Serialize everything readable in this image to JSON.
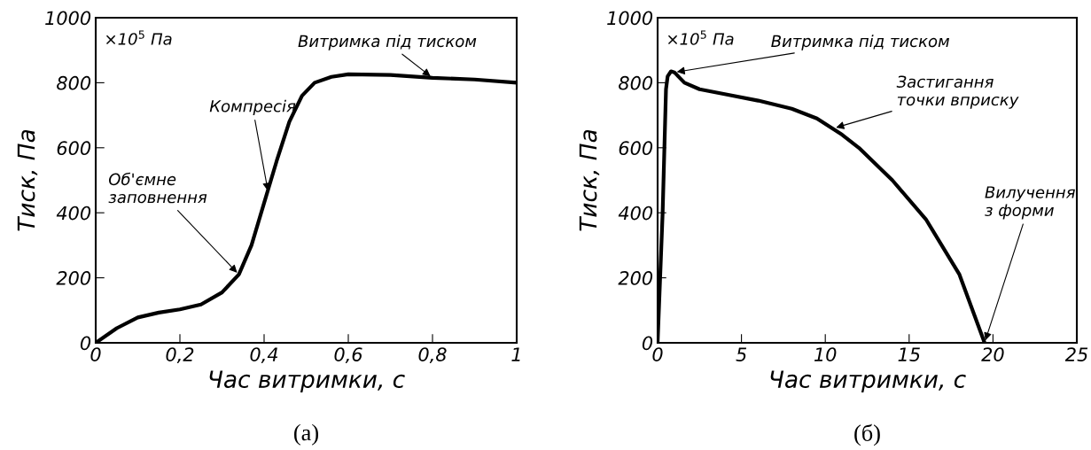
{
  "chart_data": [
    {
      "type": "line",
      "xlabel": "Час витримки, с",
      "ylabel": "Тиск, Па",
      "xlim": [
        0,
        1
      ],
      "ylim": [
        0,
        1000
      ],
      "xticks": [
        0,
        {
          "value": 0.2,
          "label": "0,2"
        },
        {
          "value": 0.4,
          "label": "0,4"
        },
        {
          "value": 0.6,
          "label": "0,6"
        },
        {
          "value": 0.8,
          "label": "0,8"
        },
        1
      ],
      "yticks": [
        0,
        200,
        400,
        600,
        800,
        1000
      ],
      "grid": false,
      "line_style": "solid",
      "x": [
        0,
        0.05,
        0.1,
        0.15,
        0.2,
        0.25,
        0.3,
        0.34,
        0.37,
        0.4,
        0.43,
        0.46,
        0.49,
        0.52,
        0.56,
        0.6,
        0.7,
        0.8,
        0.9,
        1
      ],
      "series": [
        {
          "color": "#000000",
          "values": [
            0,
            45,
            78,
            93,
            103,
            118,
            155,
            210,
            300,
            430,
            560,
            680,
            760,
            800,
            818,
            826,
            824,
            815,
            810,
            800
          ]
        }
      ],
      "annotations": [
        "×10$^{5}$ Па",
        {
          "text": "Об'ємне\nзаповнення",
          "x": 0.34,
          "y": 210
        },
        {
          "text": "Компресія",
          "x": 0.41,
          "y": 460
        },
        {
          "text": "Витримка під тиском",
          "x": 0.8,
          "y": 815
        },
        "(а)"
      ]
    },
    {
      "type": "line",
      "xlabel": "Час витримки, с",
      "ylabel": "Тиск, Па",
      "xlim": [
        0,
        25
      ],
      "ylim": [
        0,
        1000
      ],
      "xticks": [
        0,
        5,
        10,
        15,
        20,
        25
      ],
      "yticks": [
        0,
        200,
        400,
        600,
        800,
        1000
      ],
      "grid": false,
      "line_style": "solid",
      "x": [
        0,
        0.3,
        0.5,
        0.6,
        0.8,
        1.0,
        1.6,
        2.5,
        4,
        6,
        8,
        9.5,
        11,
        12,
        14,
        16,
        18,
        19.5
      ],
      "series": [
        {
          "color": "#000000",
          "values": [
            0,
            400,
            780,
            820,
            835,
            832,
            800,
            780,
            765,
            745,
            720,
            690,
            640,
            600,
            500,
            380,
            210,
            0
          ]
        }
      ],
      "annotations": [
        "×10$^{5}$ Па",
        {
          "text": "Витримка під тиском",
          "x": 1.0,
          "y": 832
        },
        {
          "text": "Застигання\nточки вприску",
          "x": 10.5,
          "y": 660
        },
        {
          "text": "Вилучення\nз форми",
          "x": 19.5,
          "y": 0
        },
        "(б)"
      ]
    }
  ]
}
